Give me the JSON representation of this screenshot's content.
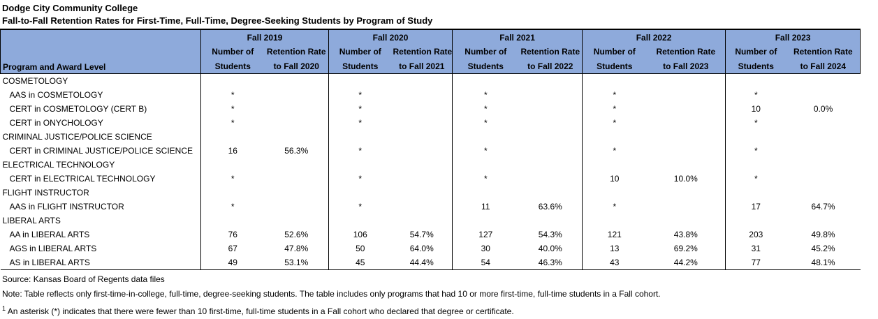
{
  "page": {
    "title_line1": "Dodge City Community College",
    "title_line2": "Fall-to-Fall Retention Rates for First-Time, Full-Time, Degree-Seeking Students by Program of Study"
  },
  "colors": {
    "header_fill": "#8EAADB",
    "border": "#000000",
    "text": "#000000"
  },
  "table": {
    "program_header": "Program and Award Level",
    "subheaders": {
      "students_line1": "Number of",
      "students_line2": "Students",
      "rate_line1": "Retention Rate"
    },
    "groups": [
      {
        "year": "Fall 2019",
        "rate_line2": "to Fall 2020"
      },
      {
        "year": "Fall 2020",
        "rate_line2": "to Fall 2021"
      },
      {
        "year": "Fall 2021",
        "rate_line2": "to Fall 2022"
      },
      {
        "year": "Fall 2022",
        "rate_line2": "to Fall 2023"
      },
      {
        "year": "Fall 2023",
        "rate_line2": "to Fall 2024"
      }
    ],
    "rows": [
      {
        "type": "category",
        "label": "COSMETOLOGY"
      },
      {
        "type": "program",
        "label": "AAS in COSMETOLOGY",
        "values": [
          "*",
          "",
          "*",
          "",
          "*",
          "",
          "*",
          "",
          "*",
          ""
        ]
      },
      {
        "type": "program",
        "label": "CERT in COSMETOLOGY (CERT B)",
        "values": [
          "*",
          "",
          "*",
          "",
          "*",
          "",
          "*",
          "",
          "10",
          "0.0%"
        ]
      },
      {
        "type": "program",
        "label": "CERT in ONYCHOLOGY",
        "values": [
          "*",
          "",
          "*",
          "",
          "*",
          "",
          "*",
          "",
          "*",
          ""
        ]
      },
      {
        "type": "category",
        "label": "CRIMINAL JUSTICE/POLICE SCIENCE"
      },
      {
        "type": "program",
        "label": "CERT in CRIMINAL JUSTICE/POLICE SCIENCE",
        "values": [
          "16",
          "56.3%",
          "*",
          "",
          "*",
          "",
          "*",
          "",
          "*",
          ""
        ]
      },
      {
        "type": "category",
        "label": "ELECTRICAL TECHNOLOGY"
      },
      {
        "type": "program",
        "label": "CERT in ELECTRICAL TECHNOLOGY",
        "values": [
          "*",
          "",
          "*",
          "",
          "*",
          "",
          "10",
          "10.0%",
          "*",
          ""
        ]
      },
      {
        "type": "category",
        "label": "FLIGHT INSTRUCTOR"
      },
      {
        "type": "program",
        "label": "AAS in FLIGHT INSTRUCTOR",
        "values": [
          "*",
          "",
          "*",
          "",
          "11",
          "63.6%",
          "*",
          "",
          "17",
          "64.7%"
        ]
      },
      {
        "type": "category",
        "label": "LIBERAL ARTS"
      },
      {
        "type": "program",
        "label": "AA in LIBERAL ARTS",
        "values": [
          "76",
          "52.6%",
          "106",
          "54.7%",
          "127",
          "54.3%",
          "121",
          "43.8%",
          "203",
          "49.8%"
        ]
      },
      {
        "type": "program",
        "label": "AGS in LIBERAL ARTS",
        "values": [
          "67",
          "47.8%",
          "50",
          "64.0%",
          "30",
          "40.0%",
          "13",
          "69.2%",
          "31",
          "45.2%"
        ]
      },
      {
        "type": "program",
        "label": "AS in LIBERAL ARTS",
        "values": [
          "49",
          "53.1%",
          "45",
          "44.4%",
          "54",
          "46.3%",
          "43",
          "44.2%",
          "77",
          "48.1%"
        ]
      }
    ]
  },
  "footer": {
    "source": "Source: Kansas Board of Regents data files",
    "note": "Note: Table reflects only first-time-in-college, full-time, degree-seeking students. The table includes only programs that had 10 or more first-time, full-time students in a Fall cohort.",
    "footnote_sup": "1",
    "footnote_text": " An asterisk (*) indicates that there were fewer than 10 first-time, full-time students in a Fall cohort who declared that degree or certificate."
  }
}
